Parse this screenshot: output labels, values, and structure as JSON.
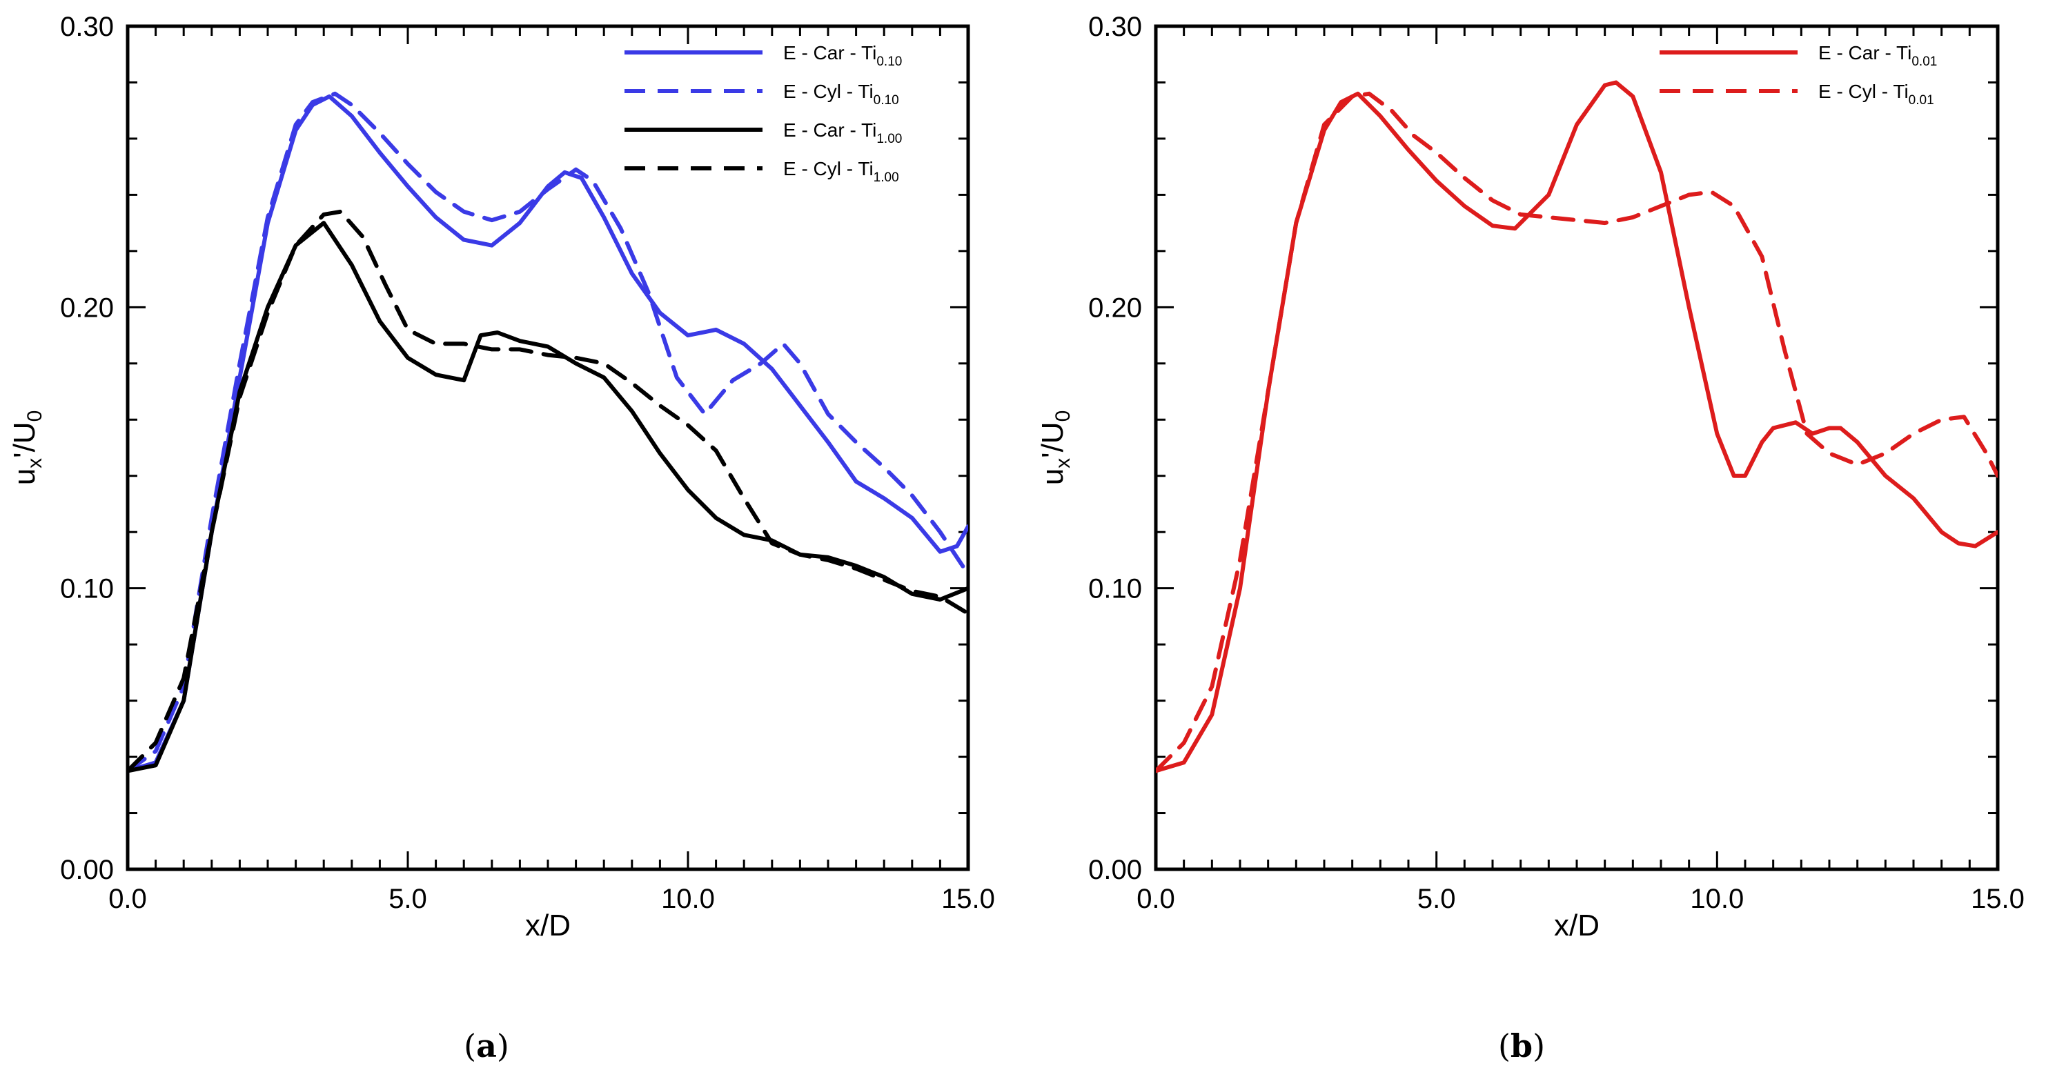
{
  "chart_data": [
    {
      "id": "a",
      "type": "line",
      "caption_open": "(",
      "caption_letter": "a",
      "caption_close": ")",
      "xlabel": "x/D",
      "ylabel_main": "u",
      "ylabel_sub1": "x",
      "ylabel_mid": "'/U",
      "ylabel_sub2": "0",
      "xlim": [
        0,
        15
      ],
      "ylim": [
        0,
        0.3
      ],
      "xticks": [
        0,
        5,
        10,
        15
      ],
      "xtick_labels": [
        "0.0",
        "5.0",
        "10.0",
        "15.0"
      ],
      "yticks": [
        0,
        0.1,
        0.2,
        0.3
      ],
      "ytick_labels": [
        "0.00",
        "0.10",
        "0.20",
        "0.30"
      ],
      "legend_position": "top-right",
      "series": [
        {
          "name": "E - Car - Ti",
          "sub": "0.10",
          "color": "#3a3ae6",
          "dash": "solid",
          "x": [
            0,
            0.5,
            1.0,
            1.5,
            2.0,
            2.5,
            3.0,
            3.3,
            3.6,
            4.0,
            4.5,
            5.0,
            5.5,
            6.0,
            6.5,
            7.0,
            7.5,
            7.8,
            8.1,
            8.5,
            9.0,
            9.5,
            10.0,
            10.5,
            11.0,
            11.5,
            12.0,
            12.5,
            13.0,
            13.5,
            14.0,
            14.5,
            14.8,
            15.0
          ],
          "y": [
            0.035,
            0.038,
            0.06,
            0.12,
            0.175,
            0.23,
            0.263,
            0.272,
            0.275,
            0.268,
            0.255,
            0.243,
            0.232,
            0.224,
            0.222,
            0.23,
            0.243,
            0.248,
            0.246,
            0.232,
            0.212,
            0.198,
            0.19,
            0.192,
            0.187,
            0.178,
            0.165,
            0.152,
            0.138,
            0.132,
            0.125,
            0.113,
            0.115,
            0.122
          ]
        },
        {
          "name": "E - Cyl - Ti",
          "sub": "0.10",
          "color": "#3a3ae6",
          "dash": "dashed",
          "x": [
            0,
            0.5,
            1.0,
            1.5,
            2.0,
            2.5,
            3.0,
            3.3,
            3.7,
            4.0,
            4.5,
            5.0,
            5.5,
            6.0,
            6.5,
            7.0,
            7.5,
            8.0,
            8.3,
            8.8,
            9.3,
            9.8,
            10.3,
            10.8,
            11.3,
            11.7,
            12.0,
            12.5,
            13.0,
            13.5,
            14.0,
            14.5,
            15.0
          ],
          "y": [
            0.035,
            0.042,
            0.065,
            0.125,
            0.18,
            0.232,
            0.265,
            0.273,
            0.276,
            0.272,
            0.262,
            0.251,
            0.241,
            0.234,
            0.231,
            0.234,
            0.242,
            0.249,
            0.245,
            0.228,
            0.205,
            0.175,
            0.162,
            0.174,
            0.18,
            0.187,
            0.18,
            0.162,
            0.152,
            0.143,
            0.133,
            0.12,
            0.105
          ]
        },
        {
          "name": "E - Car - Ti",
          "sub": "1.00",
          "color": "#000000",
          "dash": "solid",
          "x": [
            0,
            0.5,
            1.0,
            1.5,
            2.0,
            2.5,
            3.0,
            3.5,
            4.0,
            4.5,
            5.0,
            5.5,
            6.0,
            6.3,
            6.6,
            7.0,
            7.5,
            8.0,
            8.5,
            9.0,
            9.5,
            10.0,
            10.5,
            11.0,
            11.5,
            12.0,
            12.5,
            13.0,
            13.5,
            14.0,
            14.5,
            15.0
          ],
          "y": [
            0.035,
            0.037,
            0.06,
            0.12,
            0.17,
            0.2,
            0.222,
            0.23,
            0.215,
            0.195,
            0.182,
            0.176,
            0.174,
            0.19,
            0.191,
            0.188,
            0.186,
            0.18,
            0.175,
            0.163,
            0.148,
            0.135,
            0.125,
            0.119,
            0.117,
            0.112,
            0.111,
            0.108,
            0.104,
            0.098,
            0.096,
            0.1
          ]
        },
        {
          "name": "E - Cyl - Ti",
          "sub": "1.00",
          "color": "#000000",
          "dash": "dashed",
          "x": [
            0,
            0.5,
            1.0,
            1.5,
            2.0,
            2.5,
            3.0,
            3.5,
            3.8,
            4.2,
            4.6,
            5.0,
            5.5,
            6.0,
            6.5,
            7.0,
            7.5,
            8.0,
            8.5,
            9.0,
            9.5,
            10.0,
            10.5,
            11.0,
            11.5,
            12.0,
            12.5,
            13.0,
            13.5,
            14.0,
            14.5,
            15.0
          ],
          "y": [
            0.035,
            0.045,
            0.068,
            0.12,
            0.168,
            0.198,
            0.222,
            0.233,
            0.234,
            0.225,
            0.208,
            0.192,
            0.187,
            0.187,
            0.185,
            0.185,
            0.183,
            0.182,
            0.18,
            0.173,
            0.165,
            0.158,
            0.149,
            0.132,
            0.116,
            0.112,
            0.11,
            0.107,
            0.103,
            0.099,
            0.097,
            0.091
          ]
        }
      ]
    },
    {
      "id": "b",
      "type": "line",
      "caption_open": "(",
      "caption_letter": "b",
      "caption_close": ")",
      "xlabel": "x/D",
      "ylabel_main": "u",
      "ylabel_sub1": "x",
      "ylabel_mid": "'/U",
      "ylabel_sub2": "0",
      "xlim": [
        0,
        15
      ],
      "ylim": [
        0,
        0.3
      ],
      "xticks": [
        0,
        5,
        10,
        15
      ],
      "xtick_labels": [
        "0.0",
        "5.0",
        "10.0",
        "15.0"
      ],
      "yticks": [
        0,
        0.1,
        0.2,
        0.3
      ],
      "ytick_labels": [
        "0.00",
        "0.10",
        "0.20",
        "0.30"
      ],
      "legend_position": "top-right",
      "series": [
        {
          "name": "E - Car - Ti",
          "sub": "0.01",
          "color": "#dd1c1c",
          "dash": "solid",
          "x": [
            0,
            0.5,
            1.0,
            1.5,
            2.0,
            2.5,
            3.0,
            3.3,
            3.6,
            4.0,
            4.5,
            5.0,
            5.5,
            6.0,
            6.4,
            7.0,
            7.5,
            8.0,
            8.2,
            8.5,
            9.0,
            9.5,
            10.0,
            10.3,
            10.5,
            10.8,
            11.0,
            11.4,
            11.7,
            12.0,
            12.2,
            12.5,
            13.0,
            13.5,
            14.0,
            14.3,
            14.6,
            15.0
          ],
          "y": [
            0.035,
            0.038,
            0.055,
            0.1,
            0.17,
            0.23,
            0.263,
            0.273,
            0.276,
            0.268,
            0.256,
            0.245,
            0.236,
            0.229,
            0.228,
            0.24,
            0.265,
            0.279,
            0.28,
            0.275,
            0.248,
            0.2,
            0.155,
            0.14,
            0.14,
            0.152,
            0.157,
            0.159,
            0.155,
            0.157,
            0.157,
            0.152,
            0.14,
            0.132,
            0.12,
            0.116,
            0.115,
            0.12
          ]
        },
        {
          "name": "E - Cyl - Ti",
          "sub": "0.01",
          "color": "#dd1c1c",
          "dash": "dashed",
          "x": [
            0,
            0.5,
            1.0,
            1.5,
            2.0,
            2.5,
            3.0,
            3.5,
            3.8,
            4.2,
            4.6,
            5.0,
            5.5,
            6.0,
            6.5,
            7.0,
            7.5,
            8.0,
            8.5,
            9.0,
            9.5,
            9.9,
            10.3,
            10.8,
            11.2,
            11.6,
            12.0,
            12.5,
            13.0,
            13.5,
            14.0,
            14.4,
            14.8,
            15.0
          ],
          "y": [
            0.035,
            0.045,
            0.065,
            0.11,
            0.17,
            0.23,
            0.265,
            0.275,
            0.276,
            0.27,
            0.261,
            0.255,
            0.246,
            0.238,
            0.233,
            0.232,
            0.231,
            0.23,
            0.232,
            0.236,
            0.24,
            0.241,
            0.236,
            0.218,
            0.185,
            0.155,
            0.148,
            0.144,
            0.148,
            0.155,
            0.16,
            0.161,
            0.148,
            0.14
          ]
        }
      ]
    }
  ]
}
